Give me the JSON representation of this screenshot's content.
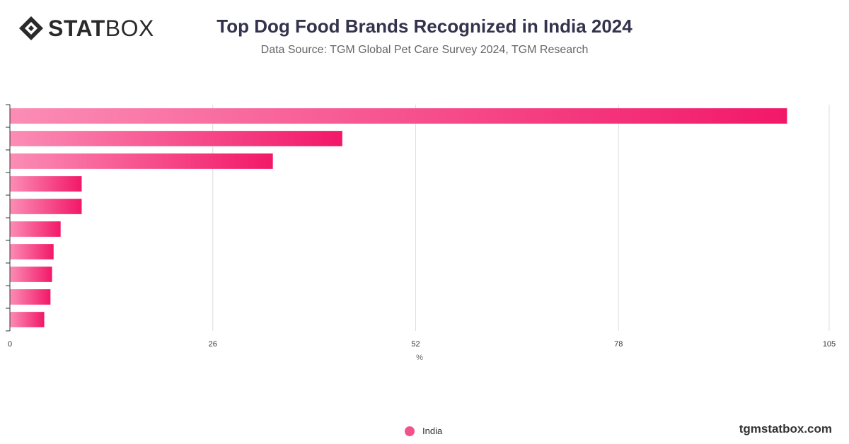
{
  "brand": {
    "logo_bold": "STAT",
    "logo_light": "BOX",
    "watermark": "tgmstatbox.com"
  },
  "header": {
    "title": "Top Dog Food Brands Recognized in India 2024",
    "subtitle": "Data Source: TGM Global Pet Care Survey 2024, TGM Research"
  },
  "colors": {
    "bar_start": "#fb8db5",
    "bar_end": "#f21868",
    "grid": "#dddddd",
    "axis": "#333333"
  },
  "chart_data": {
    "type": "bar",
    "orientation": "horizontal",
    "title": "Top Dog Food Brands Recognized in India 2024",
    "subtitle": "Data Source: TGM Global Pet Care Survey 2024, TGM Research",
    "xlabel": "%",
    "ylabel": "",
    "xlim": [
      0,
      105
    ],
    "xticks": [
      0,
      26,
      52,
      78,
      105
    ],
    "categories": [
      "",
      "",
      "",
      "",
      "",
      "",
      "",
      "",
      "",
      ""
    ],
    "series": [
      {
        "name": "India",
        "values": [
          99.6,
          42.6,
          33.7,
          9.2,
          9.2,
          6.5,
          5.6,
          5.4,
          5.2,
          4.4
        ]
      }
    ],
    "grid": true,
    "legend": "bottom-center"
  }
}
